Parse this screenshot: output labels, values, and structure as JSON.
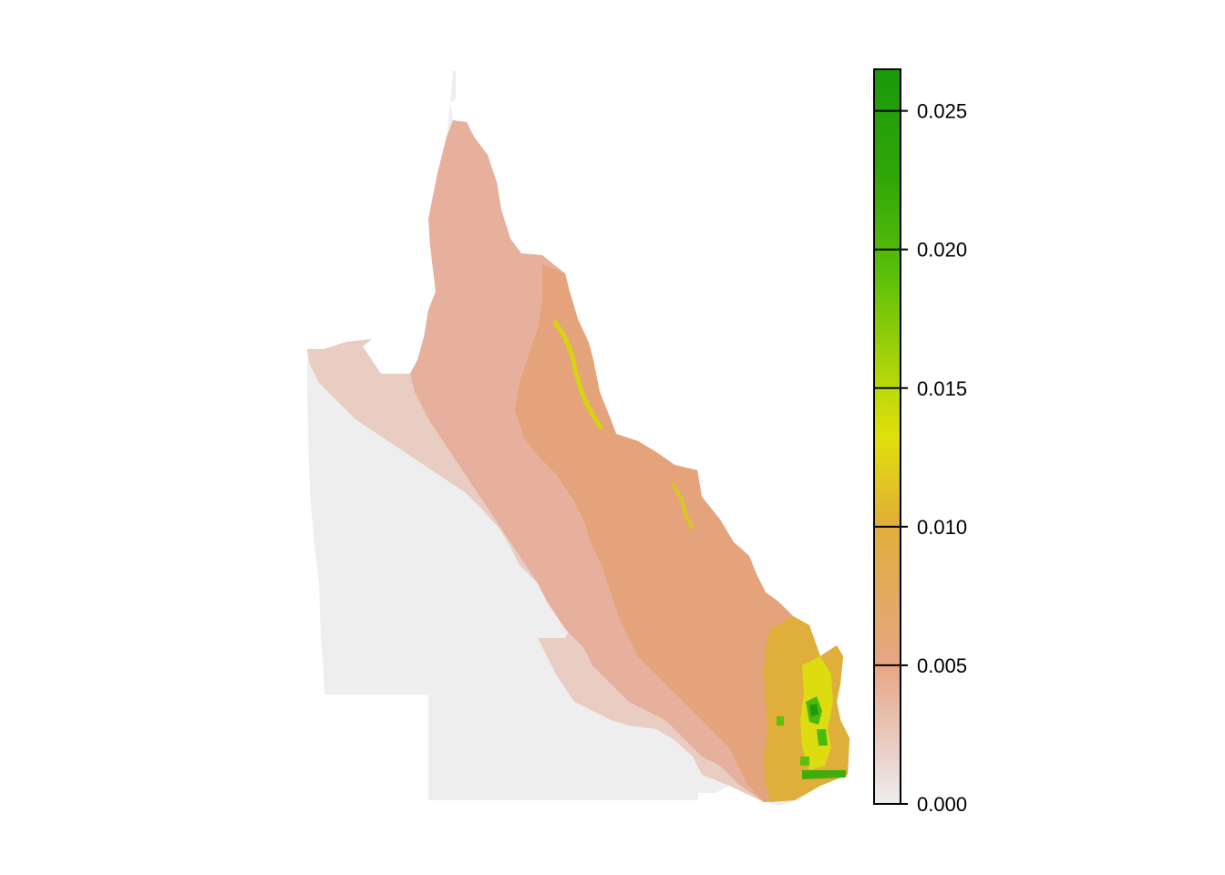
{
  "map": {
    "region": "Queensland, Australia",
    "palette": {
      "v0": "#eeeeee",
      "v005": "#e6a685",
      "v010": "#e0ae3a",
      "v015": "#e0e00a",
      "v020": "#5cbf0a",
      "v025": "#1a9a0a",
      "outline": "#000000"
    }
  },
  "legend": {
    "min": 0.0,
    "max": 0.0265,
    "ticks": [
      {
        "value": 0.0,
        "label": "0.000"
      },
      {
        "value": 0.005,
        "label": "0.005"
      },
      {
        "value": 0.01,
        "label": "0.010"
      },
      {
        "value": 0.015,
        "label": "0.015"
      },
      {
        "value": 0.02,
        "label": "0.020"
      },
      {
        "value": 0.025,
        "label": "0.025"
      }
    ]
  }
}
